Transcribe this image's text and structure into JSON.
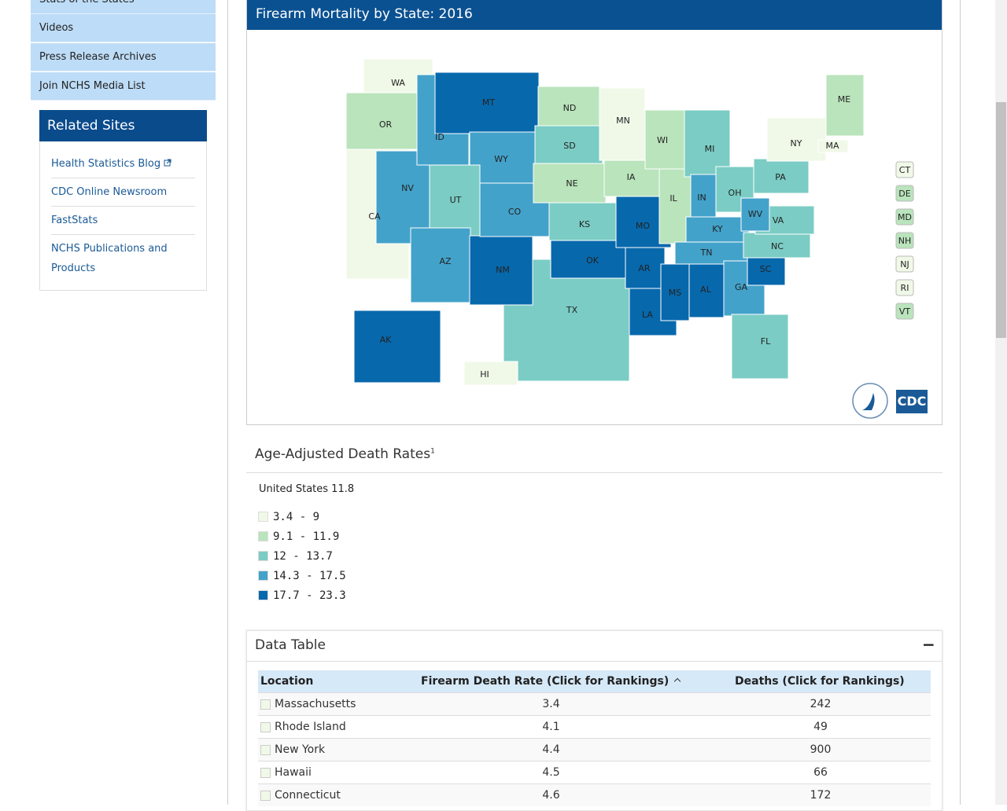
{
  "sidebar": {
    "nav": [
      "Stats of the States",
      "Videos",
      "Press Release Archives",
      "Join NCHS Media List"
    ],
    "related_title": "Related Sites",
    "related_links": [
      "Health Statistics Blog",
      "CDC Online Newsroom",
      "FastStats",
      "NCHS Publications and Products"
    ]
  },
  "map": {
    "title": "Firearm Mortality by State: 2016",
    "states": [
      {
        "abbr": "CA",
        "color": "#f0f9e8"
      },
      {
        "abbr": "TX",
        "color": "#7bccc4"
      },
      {
        "abbr": "WA",
        "color": "#f0f9e8"
      },
      {
        "abbr": "OR",
        "color": "#bae4bc"
      },
      {
        "abbr": "NV",
        "color": "#43a2ca"
      },
      {
        "abbr": "ID",
        "color": "#43a2ca"
      },
      {
        "abbr": "MT",
        "color": "#0868ac"
      },
      {
        "abbr": "WY",
        "color": "#43a2ca"
      },
      {
        "abbr": "UT",
        "color": "#7bccc4"
      },
      {
        "abbr": "AZ",
        "color": "#43a2ca"
      },
      {
        "abbr": "NM",
        "color": "#0868ac"
      },
      {
        "abbr": "CO",
        "color": "#43a2ca"
      },
      {
        "abbr": "ND",
        "color": "#bae4bc"
      },
      {
        "abbr": "SD",
        "color": "#7bccc4"
      },
      {
        "abbr": "NE",
        "color": "#bae4bc"
      },
      {
        "abbr": "KS",
        "color": "#7bccc4"
      },
      {
        "abbr": "OK",
        "color": "#0868ac"
      },
      {
        "abbr": "MN",
        "color": "#f0f9e8"
      },
      {
        "abbr": "IA",
        "color": "#bae4bc"
      },
      {
        "abbr": "MO",
        "color": "#0868ac"
      },
      {
        "abbr": "AR",
        "color": "#0868ac"
      },
      {
        "abbr": "LA",
        "color": "#0868ac"
      },
      {
        "abbr": "WI",
        "color": "#bae4bc"
      },
      {
        "abbr": "IL",
        "color": "#bae4bc"
      },
      {
        "abbr": "MS",
        "color": "#0868ac"
      },
      {
        "abbr": "MI",
        "color": "#7bccc4"
      },
      {
        "abbr": "IN",
        "color": "#43a2ca"
      },
      {
        "abbr": "OH",
        "color": "#7bccc4"
      },
      {
        "abbr": "KY",
        "color": "#43a2ca"
      },
      {
        "abbr": "TN",
        "color": "#43a2ca"
      },
      {
        "abbr": "AL",
        "color": "#0868ac"
      },
      {
        "abbr": "GA",
        "color": "#43a2ca"
      },
      {
        "abbr": "FL",
        "color": "#7bccc4"
      },
      {
        "abbr": "SC",
        "color": "#0868ac"
      },
      {
        "abbr": "NC",
        "color": "#7bccc4"
      },
      {
        "abbr": "VA",
        "color": "#7bccc4"
      },
      {
        "abbr": "WV",
        "color": "#43a2ca"
      },
      {
        "abbr": "PA",
        "color": "#7bccc4"
      },
      {
        "abbr": "NY",
        "color": "#f0f9e8"
      },
      {
        "abbr": "ME",
        "color": "#bae4bc"
      },
      {
        "abbr": "MA",
        "color": "#f0f9e8"
      },
      {
        "abbr": "AK",
        "color": "#0868ac"
      },
      {
        "abbr": "HI",
        "color": "#f0f9e8"
      }
    ],
    "small_states": [
      {
        "abbr": "CT",
        "color": "#f0f9e8"
      },
      {
        "abbr": "DE",
        "color": "#bae4bc"
      },
      {
        "abbr": "MD",
        "color": "#bae4bc"
      },
      {
        "abbr": "NH",
        "color": "#bae4bc"
      },
      {
        "abbr": "NJ",
        "color": "#f0f9e8"
      },
      {
        "abbr": "RI",
        "color": "#f0f9e8"
      },
      {
        "abbr": "VT",
        "color": "#bae4bc"
      }
    ],
    "logo_text": "CDC"
  },
  "legend": {
    "title": "Age-Adjusted Death Rates",
    "footnote_mark": "1",
    "us_label": "United States",
    "us_value": 11.8,
    "items": [
      {
        "label": "3.4 - 9",
        "color": "#f0f9e8"
      },
      {
        "label": "9.1 - 11.9",
        "color": "#bae4bc"
      },
      {
        "label": "12 - 13.7",
        "color": "#7bccc4"
      },
      {
        "label": "14.3 - 17.5",
        "color": "#43a2ca"
      },
      {
        "label": "17.7 - 23.3",
        "color": "#0868ac"
      }
    ]
  },
  "data_table": {
    "title": "Data Table",
    "collapse": "−",
    "columns": [
      "Location",
      "Firearm Death Rate (Click for Rankings)",
      "Deaths (Click for Rankings)"
    ],
    "rows": [
      [
        "Massachusetts",
        3.4,
        242
      ],
      [
        "Rhode Island",
        4.1,
        49
      ],
      [
        "New York",
        4.4,
        900
      ],
      [
        "Hawaii",
        4.5,
        66
      ],
      [
        "Connecticut",
        4.6,
        172
      ]
    ]
  }
}
